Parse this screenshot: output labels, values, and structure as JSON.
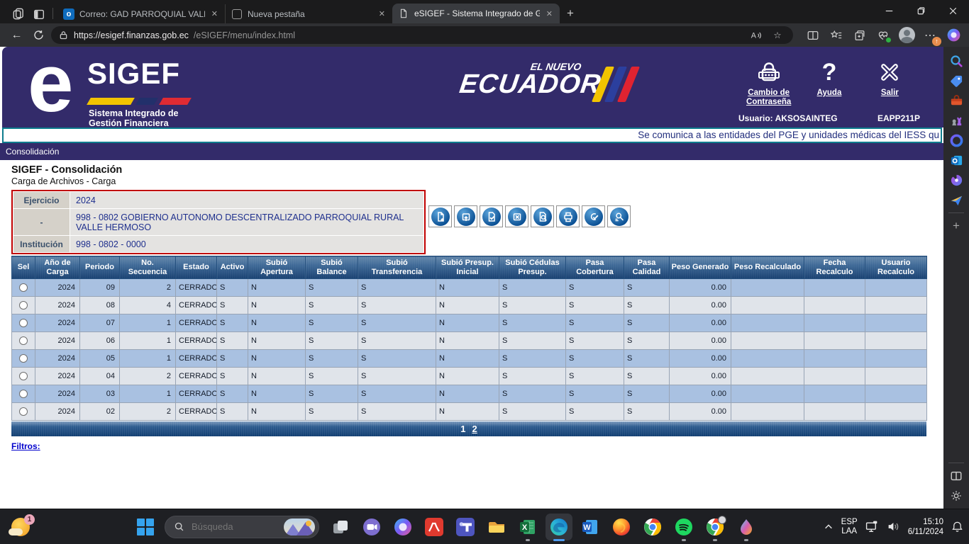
{
  "browser": {
    "tabs": [
      {
        "title": "Correo: GAD PARROQUIAL VALLE",
        "icon": "outlook-icon"
      },
      {
        "title": "Nueva pestaña",
        "icon": "newtab-icon"
      },
      {
        "title": "eSIGEF - Sistema Integrado de G",
        "icon": "page-icon",
        "active": true
      }
    ],
    "url": {
      "host": "https://esigef.finanzas.gob.ec",
      "path": "/eSIGEF/menu/index.html"
    }
  },
  "site": {
    "logo": {
      "e": "e",
      "name": "SIGEF",
      "tagline1": "Sistema Integrado de",
      "tagline2": "Gestión Financiera"
    },
    "gov": {
      "top": "EL NUEVO",
      "main": "ECUADOR"
    },
    "actions": [
      {
        "label": "Cambio de Contraseña",
        "icon": "lock-icon"
      },
      {
        "label": "Ayuda",
        "icon": "question-icon"
      },
      {
        "label": "Salir",
        "icon": "close-icon"
      }
    ],
    "user": "Usuario: AKSOSAINTEG",
    "environment": "EAPP211P",
    "marquee": "Se comunica a las entidades del PGE y unidades médicas del IESS qu",
    "breadcrumb": "Consolidación"
  },
  "page": {
    "title": "SIGEF - Consolidación",
    "subtitle": "Carga de Archivos - Carga",
    "form": [
      {
        "label": "Ejercicio",
        "value": "2024"
      },
      {
        "label": "-",
        "value": "998 - 0802 GOBIERNO AUTONOMO DESCENTRALIZADO PARROQUIAL RURAL VALLE HERMOSO"
      },
      {
        "label": "Institución",
        "value": "998 - 0802 - 0000"
      }
    ],
    "toolbar": [
      "new-document",
      "upload-file",
      "validate-record",
      "delete-record",
      "preview-document",
      "print",
      "approve-record",
      "search-records"
    ],
    "table": {
      "columns": [
        "Sel",
        "Año de Carga",
        "Periodo",
        "No. Secuencia",
        "Estado",
        "Activo",
        "Subió Apertura",
        "Subió Balance",
        "Subió Transferencia",
        "Subió Presup. Inicial",
        "Subió Cédulas Presup.",
        "Pasa Cobertura",
        "Pasa Calidad",
        "Peso Generado",
        "Peso Recalculado",
        "Fecha Recalculo",
        "Usuario Recalculo"
      ],
      "rows": [
        [
          "2024",
          "09",
          "2",
          "CERRADO",
          "S",
          "N",
          "S",
          "S",
          "N",
          "S",
          "S",
          "S",
          "0.00",
          "",
          "",
          ""
        ],
        [
          "2024",
          "08",
          "4",
          "CERRADO",
          "S",
          "N",
          "S",
          "S",
          "N",
          "S",
          "S",
          "S",
          "0.00",
          "",
          "",
          ""
        ],
        [
          "2024",
          "07",
          "1",
          "CERRADO",
          "S",
          "N",
          "S",
          "S",
          "N",
          "S",
          "S",
          "S",
          "0.00",
          "",
          "",
          ""
        ],
        [
          "2024",
          "06",
          "1",
          "CERRADO",
          "S",
          "N",
          "S",
          "S",
          "N",
          "S",
          "S",
          "S",
          "0.00",
          "",
          "",
          ""
        ],
        [
          "2024",
          "05",
          "1",
          "CERRADO",
          "S",
          "N",
          "S",
          "S",
          "N",
          "S",
          "S",
          "S",
          "0.00",
          "",
          "",
          ""
        ],
        [
          "2024",
          "04",
          "2",
          "CERRADO",
          "S",
          "N",
          "S",
          "S",
          "N",
          "S",
          "S",
          "S",
          "0.00",
          "",
          "",
          ""
        ],
        [
          "2024",
          "03",
          "1",
          "CERRADO",
          "S",
          "N",
          "S",
          "S",
          "N",
          "S",
          "S",
          "S",
          "0.00",
          "",
          "",
          ""
        ],
        [
          "2024",
          "02",
          "2",
          "CERRADO",
          "S",
          "N",
          "S",
          "S",
          "N",
          "S",
          "S",
          "S",
          "0.00",
          "",
          "",
          ""
        ]
      ]
    },
    "pagination": {
      "pages": [
        "1",
        "2"
      ],
      "current": "1"
    },
    "filters": "Filtros:"
  },
  "sidebar": {
    "top": [
      "search",
      "shopping",
      "toolbox",
      "games",
      "microsoft-365",
      "outlook",
      "designer",
      "start"
    ],
    "add": "+",
    "bottom": [
      "split-screen",
      "settings"
    ]
  },
  "taskbar": {
    "widget_badge": "1",
    "search_placeholder": "Búsqueda",
    "apps": [
      {
        "name": "task-view"
      },
      {
        "name": "chat"
      },
      {
        "name": "copilot"
      },
      {
        "name": "pdf"
      },
      {
        "name": "teams"
      },
      {
        "name": "file-explorer"
      },
      {
        "name": "excel",
        "running": true
      },
      {
        "name": "edge",
        "active": true
      },
      {
        "name": "word"
      },
      {
        "name": "firefox"
      },
      {
        "name": "chrome"
      },
      {
        "name": "spotify",
        "running": true
      },
      {
        "name": "chrome-profile",
        "running": true
      },
      {
        "name": "rainmeter",
        "running": true
      }
    ],
    "tray": {
      "lang_line1": "ESP",
      "lang_line2": "LAA",
      "time": "15:10",
      "date": "6/11/2024"
    }
  },
  "colors": {
    "header_purple": "#332b6a",
    "teal_border": "#0f7d8e",
    "form_border_red": "#c00000",
    "table_header_blue": "#173f70",
    "row_blue": "#a9c1e1",
    "row_light": "#e0e4ea",
    "link_blue": "#0000cc",
    "bar_yellow": "#f2c400",
    "bar_navy": "#22306b",
    "bar_red": "#e02b33"
  }
}
